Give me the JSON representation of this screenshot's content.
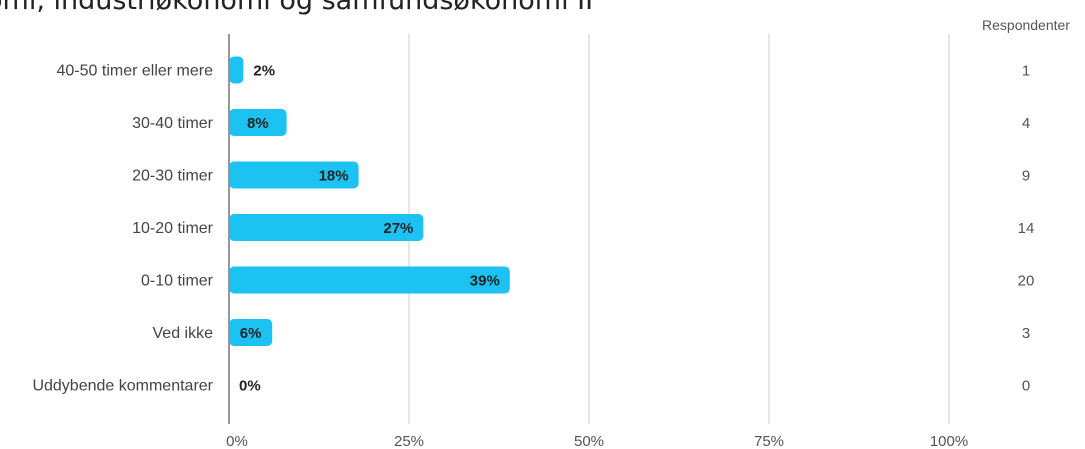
{
  "title": "omi, industriøkonomi og samfundsøkonomi II",
  "respondents_header": "Respondenter",
  "colors": {
    "bar": "#1cc3f2",
    "grid": "#cccccc",
    "axis": "#777777"
  },
  "chart_data": {
    "type": "bar",
    "orientation": "horizontal",
    "title": "omi, industriøkonomi og samfundsøkonomi II",
    "categories": [
      "40-50 timer eller mere",
      "30-40 timer",
      "20-30 timer",
      "10-20 timer",
      "0-10 timer",
      "Ved ikke",
      "Uddybende kommentarer"
    ],
    "values": [
      2,
      8,
      18,
      27,
      39,
      6,
      0
    ],
    "value_labels": [
      "2%",
      "8%",
      "18%",
      "27%",
      "39%",
      "6%",
      "0%"
    ],
    "respondents": [
      "1",
      "4",
      "9",
      "14",
      "20",
      "3",
      "0"
    ],
    "xlim": [
      0,
      100
    ],
    "xticks": [
      0,
      25,
      50,
      75,
      100
    ],
    "xtick_labels": [
      "0%",
      "25%",
      "50%",
      "75%",
      "100%"
    ],
    "grid": true,
    "legend": "none"
  }
}
